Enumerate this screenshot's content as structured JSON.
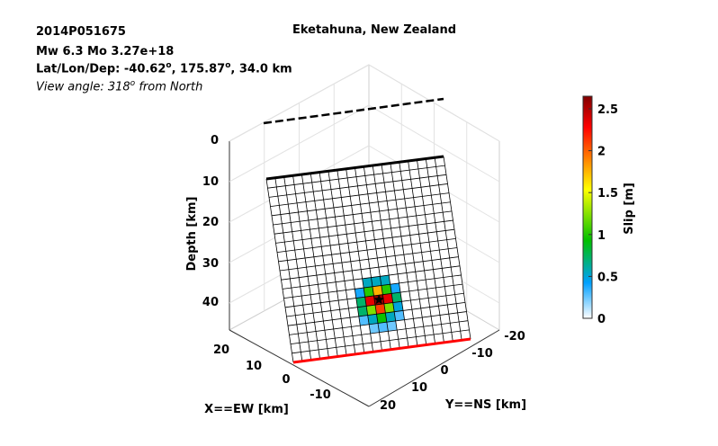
{
  "info": {
    "event_id": "2014P051675",
    "line2": "Mw 6.3    Mo 3.27e+18",
    "latlondep_prefix": "Lat/Lon/Dep: -40.62",
    "latlondep_mid": ", 175.87",
    "latlondep_suffix": ", 34.0 km",
    "degree_sup": "o",
    "view_prefix": "View angle: 318",
    "view_suffix": " from North"
  },
  "chart_data": {
    "type": "3d-fault-slip",
    "title": "Eketahuna, New Zealand",
    "zlabel": "Depth [km]",
    "xlabel": "X==EW [km]",
    "ylabel": "Y==NS [km]",
    "z_ticks": [
      "0",
      "10",
      "20",
      "30",
      "40"
    ],
    "x_ticks": [
      "20",
      "10",
      "0",
      "-10"
    ],
    "y_ticks": [
      "-20",
      "-10",
      "0",
      "10",
      "20"
    ],
    "grid": true,
    "fault_grid": {
      "cols": 20,
      "rows": 20
    },
    "colorbar": {
      "label": "Slip [m]",
      "min": 0,
      "max": 2.65,
      "ticks": [
        "0",
        "0.5",
        "1",
        "1.5",
        "2",
        "2.5"
      ],
      "colormap": [
        "#ffffff",
        "#00a0ff",
        "#00c000",
        "#ffff00",
        "#ff8000",
        "#ff0000",
        "#800000"
      ]
    },
    "slip_patches": [
      {
        "c": 9,
        "r": 12,
        "slip": 0.55
      },
      {
        "c": 10,
        "r": 12,
        "slip": 0.55
      },
      {
        "c": 11,
        "r": 12,
        "slip": 0.55
      },
      {
        "c": 8,
        "r": 13,
        "slip": 0.4
      },
      {
        "c": 9,
        "r": 13,
        "slip": 0.95
      },
      {
        "c": 10,
        "r": 13,
        "slip": 1.6
      },
      {
        "c": 11,
        "r": 13,
        "slip": 0.95
      },
      {
        "c": 12,
        "r": 13,
        "slip": 0.4
      },
      {
        "c": 8,
        "r": 14,
        "slip": 0.7
      },
      {
        "c": 9,
        "r": 14,
        "slip": 2.3
      },
      {
        "c": 10,
        "r": 14,
        "slip": 2.6
      },
      {
        "c": 11,
        "r": 14,
        "slip": 2.3
      },
      {
        "c": 12,
        "r": 14,
        "slip": 0.7
      },
      {
        "c": 8,
        "r": 15,
        "slip": 0.7
      },
      {
        "c": 9,
        "r": 15,
        "slip": 1.1
      },
      {
        "c": 10,
        "r": 15,
        "slip": 2.0
      },
      {
        "c": 11,
        "r": 15,
        "slip": 1.1
      },
      {
        "c": 12,
        "r": 15,
        "slip": 0.5
      },
      {
        "c": 8,
        "r": 16,
        "slip": 0.3
      },
      {
        "c": 9,
        "r": 16,
        "slip": 0.55
      },
      {
        "c": 10,
        "r": 16,
        "slip": 0.9
      },
      {
        "c": 11,
        "r": 16,
        "slip": 0.55
      },
      {
        "c": 12,
        "r": 16,
        "slip": 0.3
      },
      {
        "c": 9,
        "r": 17,
        "slip": 0.25
      },
      {
        "c": 10,
        "r": 17,
        "slip": 0.3
      },
      {
        "c": 11,
        "r": 17,
        "slip": 0.25
      }
    ]
  }
}
